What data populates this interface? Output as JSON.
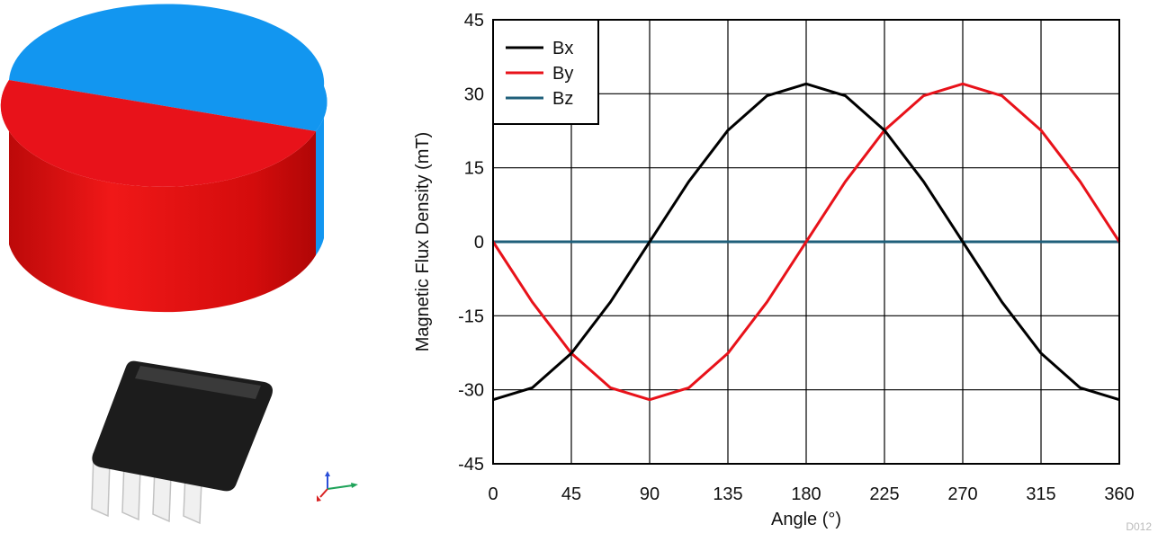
{
  "chart_data": {
    "type": "line",
    "xlabel": "Angle (°)",
    "ylabel": "Magnetic Flux Density (mT)",
    "xlim": [
      0,
      360
    ],
    "ylim": [
      -45,
      45
    ],
    "xticks": [
      0,
      45,
      90,
      135,
      180,
      225,
      270,
      315,
      360
    ],
    "yticks": [
      45,
      30,
      15,
      0,
      -15,
      -30,
      -45
    ],
    "grid": true,
    "legend_position": "top-left",
    "x": [
      0,
      22.5,
      45,
      67.5,
      90,
      112.5,
      135,
      157.5,
      180,
      202.5,
      225,
      247.5,
      270,
      292.5,
      315,
      337.5,
      360
    ],
    "series": [
      {
        "name": "Bx",
        "color": "#000000",
        "values": [
          -32,
          -29.6,
          -22.6,
          -12.2,
          0,
          12.2,
          22.6,
          29.6,
          32,
          29.6,
          22.6,
          12.2,
          0,
          -12.2,
          -22.6,
          -29.6,
          -32
        ]
      },
      {
        "name": "By",
        "color": "#e8121a",
        "values": [
          0,
          -12.2,
          -22.6,
          -29.6,
          -32,
          -29.6,
          -22.6,
          -12.2,
          0,
          12.2,
          22.6,
          29.6,
          32,
          29.6,
          22.6,
          12.2,
          0
        ]
      },
      {
        "name": "Bz",
        "color": "#1f5f7a",
        "values": [
          0,
          0,
          0,
          0,
          0,
          0,
          0,
          0,
          0,
          0,
          0,
          0,
          0,
          0,
          0,
          0,
          0
        ]
      }
    ],
    "figure_id": "D012"
  },
  "illustration": {
    "magnet_colors": {
      "north": "#e8121a",
      "south": "#1296f0"
    },
    "chip_color": "#1c1c1c",
    "axis_triad_colors": {
      "z": "#2b4fd8",
      "y": "#1fa35a",
      "x": "#d82020"
    }
  }
}
